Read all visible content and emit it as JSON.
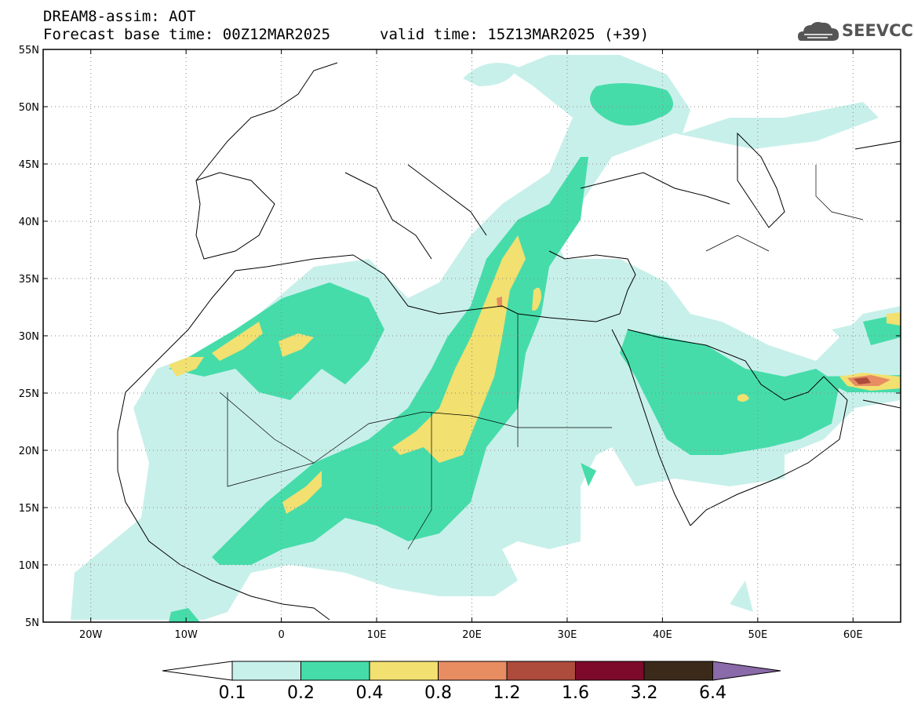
{
  "header": {
    "title": "DREAM8-assim: AOT",
    "base_time": "Forecast base time: 00Z12MAR2025",
    "valid_time": "valid time: 15Z13MAR2025 (+39)"
  },
  "logo": {
    "text": "SEEVCCC",
    "icon": "cloud-icon"
  },
  "map": {
    "lat_labels": [
      "55N",
      "50N",
      "45N",
      "40N",
      "35N",
      "30N",
      "25N",
      "20N",
      "15N",
      "10N",
      "5N"
    ],
    "lon_labels": [
      "20W",
      "10W",
      "0",
      "10E",
      "20E",
      "30E",
      "40E",
      "50E",
      "60E"
    ],
    "lat_range": [
      5,
      55
    ],
    "lon_range": [
      -25,
      65
    ],
    "grid": "dotted"
  },
  "colorbar": {
    "levels": [
      "0.1",
      "0.2",
      "0.4",
      "0.8",
      "1.2",
      "1.6",
      "3.2",
      "6.4"
    ],
    "colors": [
      "#c8f0ea",
      "#46dcaa",
      "#f2e070",
      "#e88c62",
      "#ad4b3c",
      "#7d0a2a",
      "#3b2a1a",
      "#8a6aa8"
    ],
    "under_color": "#ffffff"
  },
  "aot_colors": {
    "low": "#c8f0ea",
    "mid": "#46dcaa",
    "high": "#f2e070",
    "very_high": "#e88c62",
    "extreme": "#ad4b3c"
  }
}
